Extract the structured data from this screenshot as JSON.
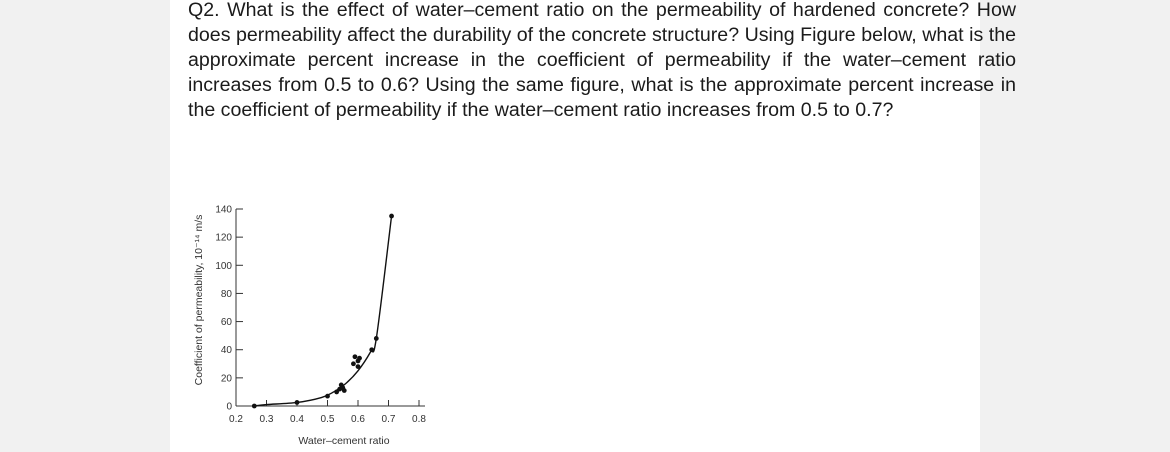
{
  "question": {
    "text": "Q2. What is the effect of water–cement ratio on the permeability of hardened concrete? How does permeability affect the durability of the concrete structure? Using Figure below, what is the approximate percent increase in the coefficient of permeability if the water–cement ratio increases from 0.5 to 0.6? Using the same figure, what is the approximate percent increase in the coefficient of permeability if the water–cement ratio increases from 0.5 to 0.7?"
  },
  "chart_data": {
    "type": "line",
    "title": "",
    "xlabel": "Water–cement ratio",
    "ylabel": "Coefficient of permeability, 10⁻¹⁴ m/s",
    "xlim": [
      0.2,
      0.8
    ],
    "ylim": [
      0,
      140
    ],
    "x_ticks": [
      "0.2",
      "0.3",
      "0.4",
      "0.5",
      "0.6",
      "0.7",
      "0.8"
    ],
    "y_ticks": [
      "0",
      "20",
      "40",
      "60",
      "80",
      "100",
      "120",
      "140"
    ],
    "grid": false,
    "curve": {
      "x": [
        0.26,
        0.3,
        0.4,
        0.48,
        0.52,
        0.56,
        0.6,
        0.64,
        0.66,
        0.71
      ],
      "y": [
        0,
        1,
        2.5,
        6,
        10,
        16,
        25,
        38,
        48,
        135
      ]
    },
    "points": {
      "x": [
        0.26,
        0.4,
        0.5,
        0.53,
        0.54,
        0.545,
        0.55,
        0.555,
        0.585,
        0.59,
        0.6,
        0.6,
        0.605,
        0.645,
        0.66,
        0.71
      ],
      "y": [
        0,
        2.5,
        7,
        10,
        12,
        15,
        13,
        11,
        30,
        35,
        32,
        28,
        34,
        40,
        48,
        135
      ]
    }
  }
}
